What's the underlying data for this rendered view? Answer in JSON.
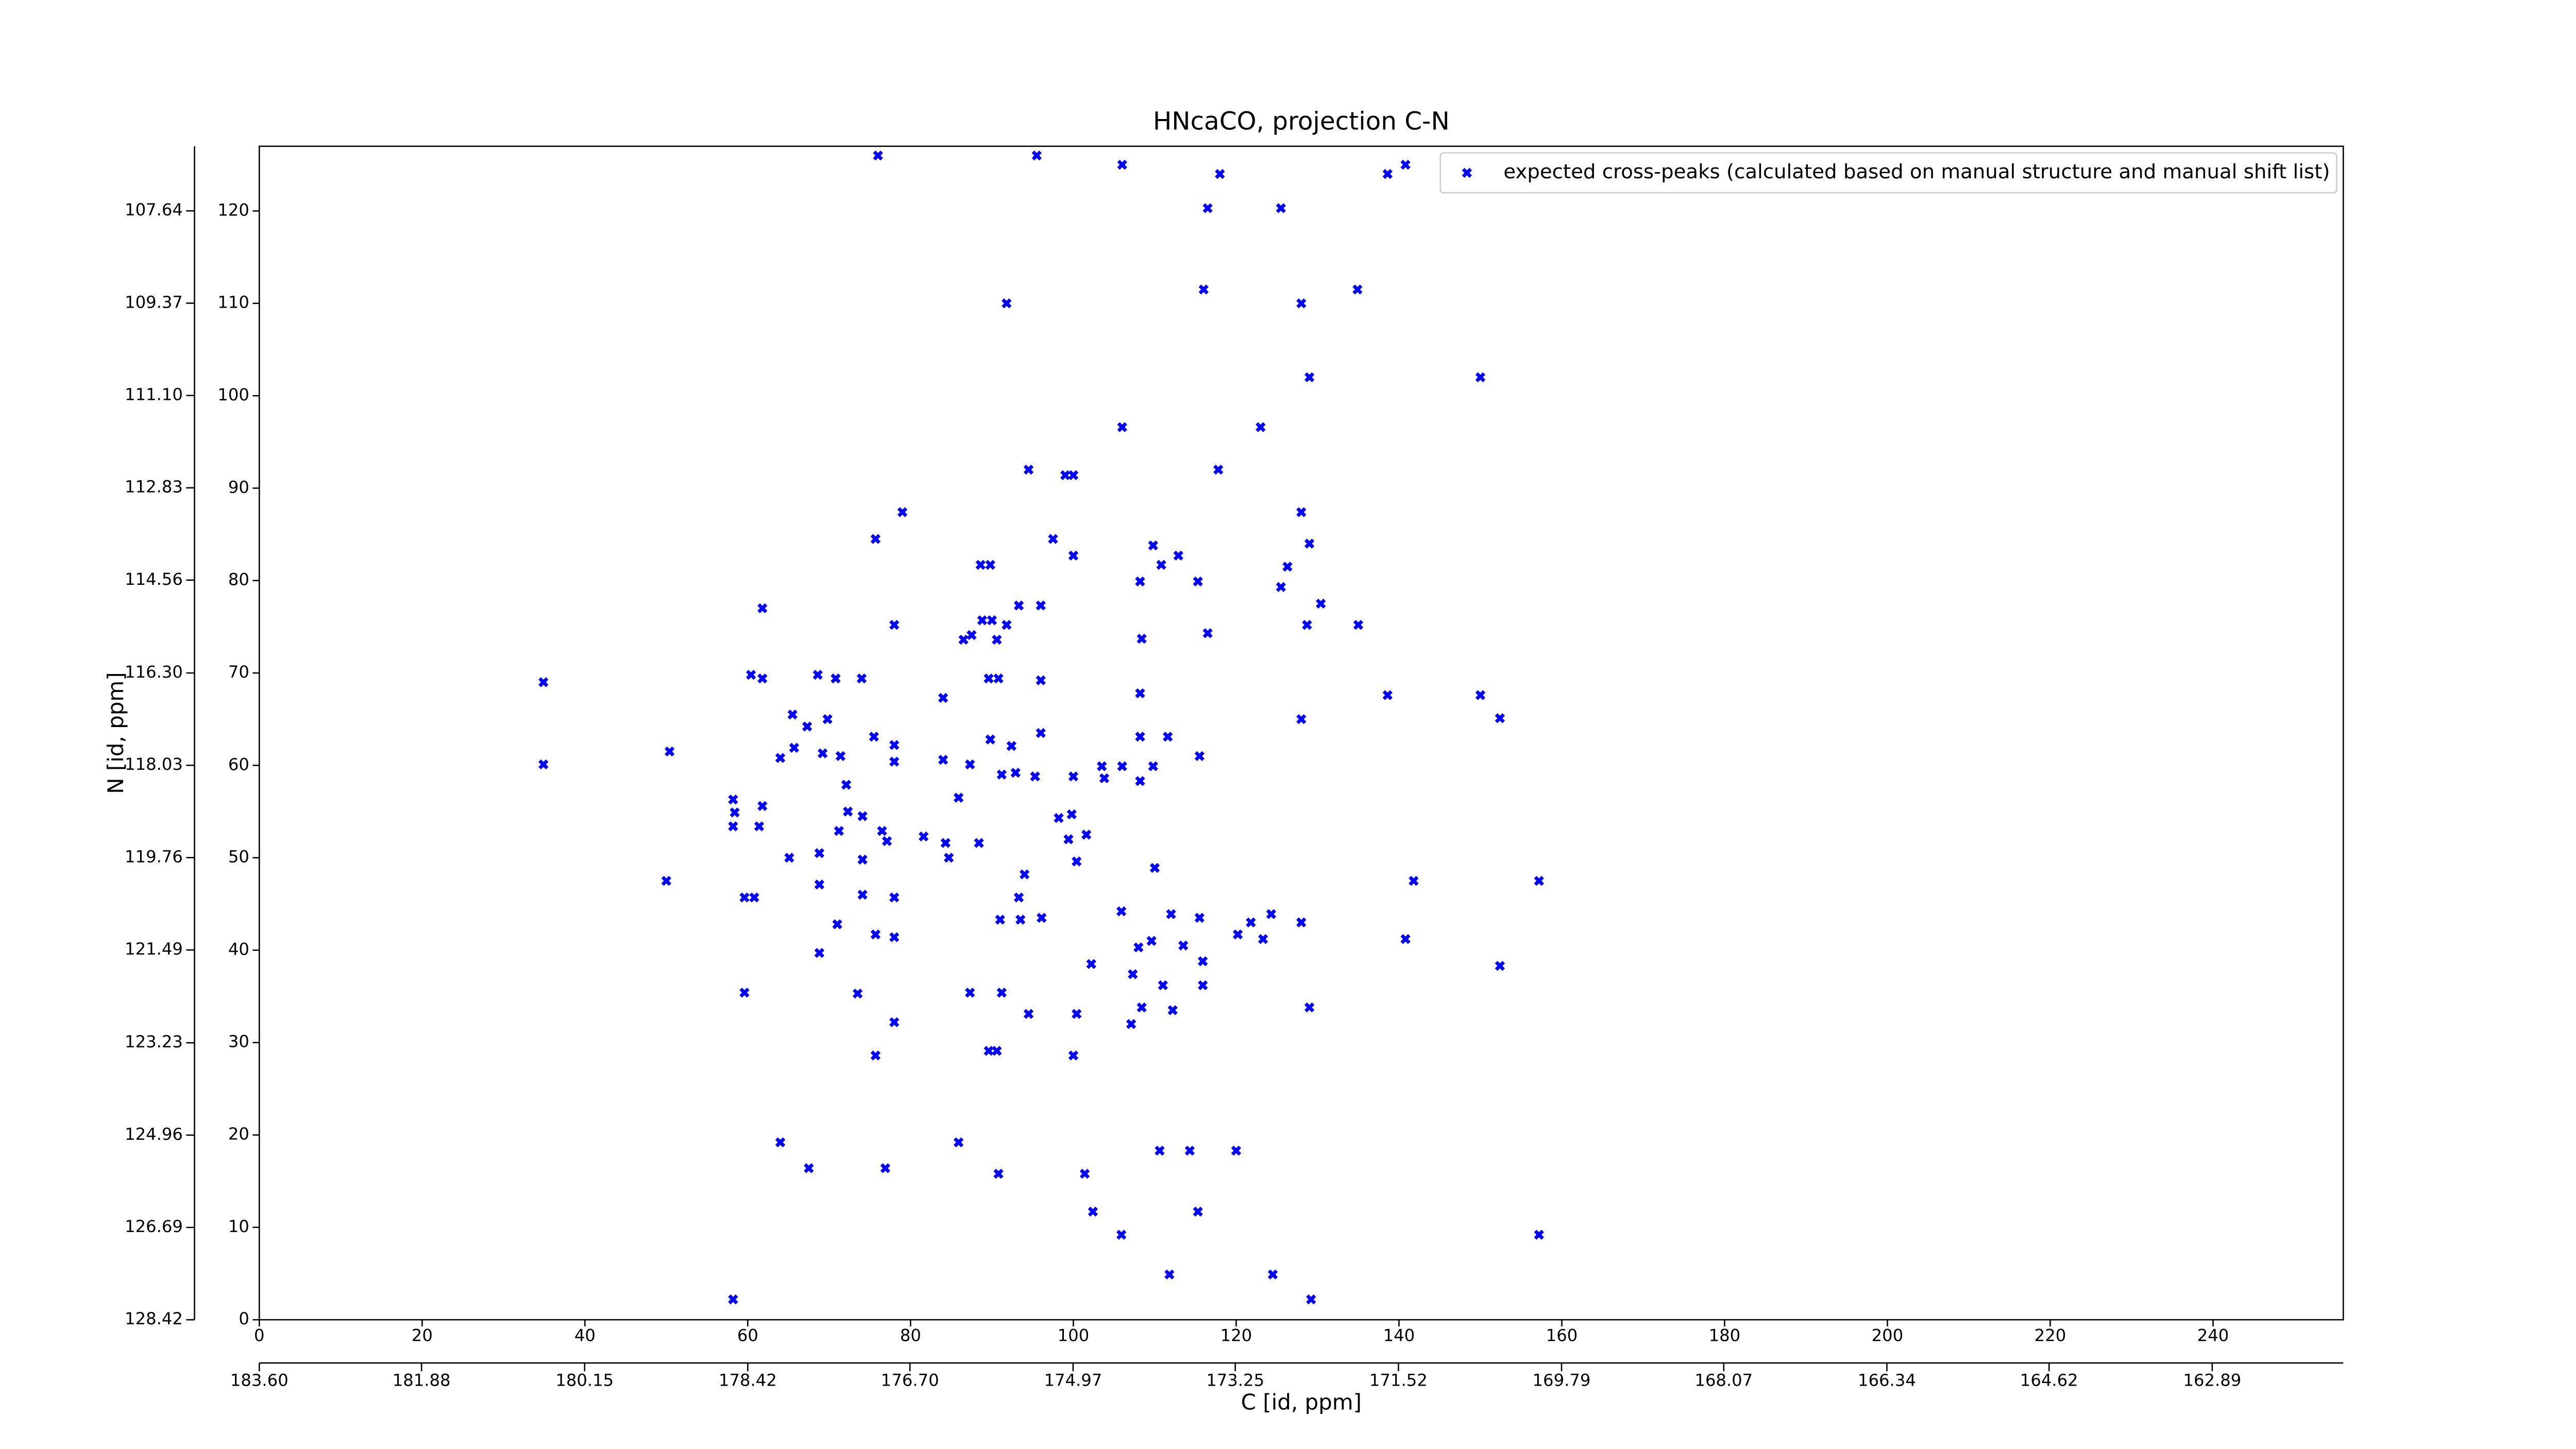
{
  "chart_data": {
    "type": "scatter",
    "title": "HNcaCO, projection C-N",
    "xlabel": "C [id, ppm]",
    "ylabel": "N [id, ppm]",
    "xlim": [
      0,
      256
    ],
    "ylim": [
      0,
      127
    ],
    "xticks": [
      0,
      20,
      40,
      60,
      80,
      100,
      120,
      140,
      160,
      180,
      200,
      220,
      240
    ],
    "yticks": [
      0,
      10,
      20,
      30,
      40,
      50,
      60,
      70,
      80,
      90,
      100,
      110,
      120
    ],
    "x2lim": [
      183.6,
      161.5
    ],
    "x2ticks": [
      {
        "value": 183.6,
        "label": "183.60"
      },
      181.88,
      180.15,
      178.42,
      {
        "value": 176.7,
        "label": "176.70"
      },
      174.97,
      173.25,
      171.52,
      169.79,
      168.07,
      166.34,
      164.62,
      162.89
    ],
    "y2lim": [
      128.42,
      106.43
    ],
    "y2ticks": [
      128.42,
      126.69,
      124.96,
      123.23,
      121.49,
      119.76,
      118.03,
      {
        "value": 116.3,
        "label": "116.30"
      },
      114.56,
      112.83,
      {
        "value": 111.1,
        "label": "111.10"
      },
      109.37,
      107.64
    ],
    "legend": "upper right",
    "series": [
      {
        "name": "expected cross-peaks (calculated based on manual structure and manual shift list)",
        "color": "#0000ff",
        "x": [
          76,
          95.5,
          106,
          118,
          138.6,
          140.8,
          116.5,
          125.5,
          91.8,
          128,
          134.9,
          116,
          129,
          150,
          106,
          123,
          94.5,
          99,
          100,
          117.8,
          79,
          128,
          75.7,
          97.5,
          129,
          100,
          109.8,
          112.9,
          110.8,
          88.6,
          89.8,
          108.2,
          115.3,
          126.3,
          125.5,
          93.3,
          96,
          61.8,
          78,
          88.8,
          90,
          91.8,
          128.7,
          135,
          130.4,
          108.4,
          116.5,
          86.5,
          87.5,
          90.6,
          60.4,
          61.8,
          68.6,
          74,
          70.8,
          34.9,
          89.6,
          90.8,
          84,
          96,
          108.2,
          138.6,
          150,
          152.4,
          128,
          65.5,
          69.8,
          67.3,
          75.5,
          78,
          65.7,
          64,
          50.4,
          69.2,
          71.4,
          78,
          89.8,
          92.4,
          96,
          108.2,
          111.6,
          115.5,
          34.9,
          84,
          87.3,
          91.2,
          92.9,
          95.3,
          100,
          103.5,
          106,
          109.8,
          108.2,
          103.8,
          85.9,
          72.1,
          58.2,
          61.8,
          58.4,
          72.3,
          74.1,
          58.2,
          61.4,
          71.2,
          76.5,
          81.6,
          77.1,
          98.2,
          99.8,
          101.6,
          99.4,
          84.3,
          88.4,
          65.1,
          68.8,
          74.1,
          84.7,
          100.4,
          110,
          94,
          50,
          68.8,
          74.1,
          78,
          59.6,
          60.8,
          141.8,
          157.2,
          93.3,
          91,
          93.5,
          96.1,
          105.9,
          71,
          112,
          115.5,
          124.3,
          121.8,
          128,
          75.7,
          78,
          120.2,
          123.3,
          109.6,
          108,
          113.5,
          68.8,
          140.8,
          102.2,
          115.9,
          152.4,
          107.3,
          59.6,
          73.5,
          87.3,
          91.2,
          111,
          115.9,
          108.4,
          112.2,
          100.4,
          129,
          94.5,
          78,
          107.1,
          89.6,
          90.6,
          75.7,
          100,
          85.9,
          64,
          120,
          110.6,
          114.3,
          67.5,
          76.9,
          90.8,
          101.4,
          102.4,
          115.3,
          105.9,
          157.2,
          111.8,
          124.5,
          129.2,
          58.2
        ],
        "y": [
          126,
          126,
          125,
          124,
          124,
          125,
          120.3,
          120.3,
          110,
          110,
          111.5,
          111.5,
          102,
          102,
          96.6,
          96.6,
          92,
          91.4,
          91.4,
          92,
          87.4,
          87.4,
          84.5,
          84.5,
          84,
          82.7,
          83.8,
          82.7,
          81.7,
          81.7,
          81.7,
          79.9,
          79.9,
          81.5,
          79.3,
          77.3,
          77.3,
          77,
          75.2,
          75.7,
          75.7,
          75.2,
          75.2,
          75.2,
          77.5,
          73.7,
          74.3,
          73.6,
          74.1,
          73.6,
          69.8,
          69.4,
          69.8,
          69.4,
          69.4,
          69,
          69.4,
          69.4,
          67.3,
          69.2,
          67.8,
          67.6,
          67.6,
          65.1,
          65,
          65.5,
          65,
          64.2,
          63.1,
          62.2,
          61.9,
          60.8,
          61.5,
          61.3,
          61,
          60.4,
          62.8,
          62.1,
          63.5,
          63.1,
          63.1,
          61,
          60.1,
          60.6,
          60.1,
          59,
          59.2,
          58.8,
          58.8,
          59.9,
          59.9,
          59.9,
          58.3,
          58.6,
          56.5,
          57.9,
          56.3,
          55.6,
          54.9,
          55,
          54.5,
          53.4,
          53.4,
          52.9,
          52.9,
          52.3,
          51.8,
          54.3,
          54.7,
          52.5,
          52,
          51.6,
          51.6,
          50,
          50.5,
          49.8,
          50,
          49.6,
          48.9,
          48.2,
          47.5,
          47.1,
          46,
          45.7,
          45.7,
          45.7,
          47.5,
          47.5,
          45.7,
          43.3,
          43.3,
          43.5,
          44.2,
          42.8,
          43.9,
          43.5,
          43.9,
          43,
          43,
          41.7,
          41.4,
          41.7,
          41.2,
          41,
          40.3,
          40.5,
          39.7,
          41.2,
          38.5,
          38.8,
          38.3,
          37.4,
          35.4,
          35.3,
          35.4,
          35.4,
          36.2,
          36.2,
          33.8,
          33.5,
          33.1,
          33.8,
          33.1,
          32.2,
          32,
          29.1,
          29.1,
          28.6,
          28.6,
          19.2,
          19.2,
          18.3,
          18.3,
          18.3,
          16.4,
          16.4,
          15.8,
          15.8,
          11.7,
          11.7,
          9.2,
          9.2,
          4.9,
          4.9,
          2.2,
          2.2
        ]
      }
    ]
  }
}
